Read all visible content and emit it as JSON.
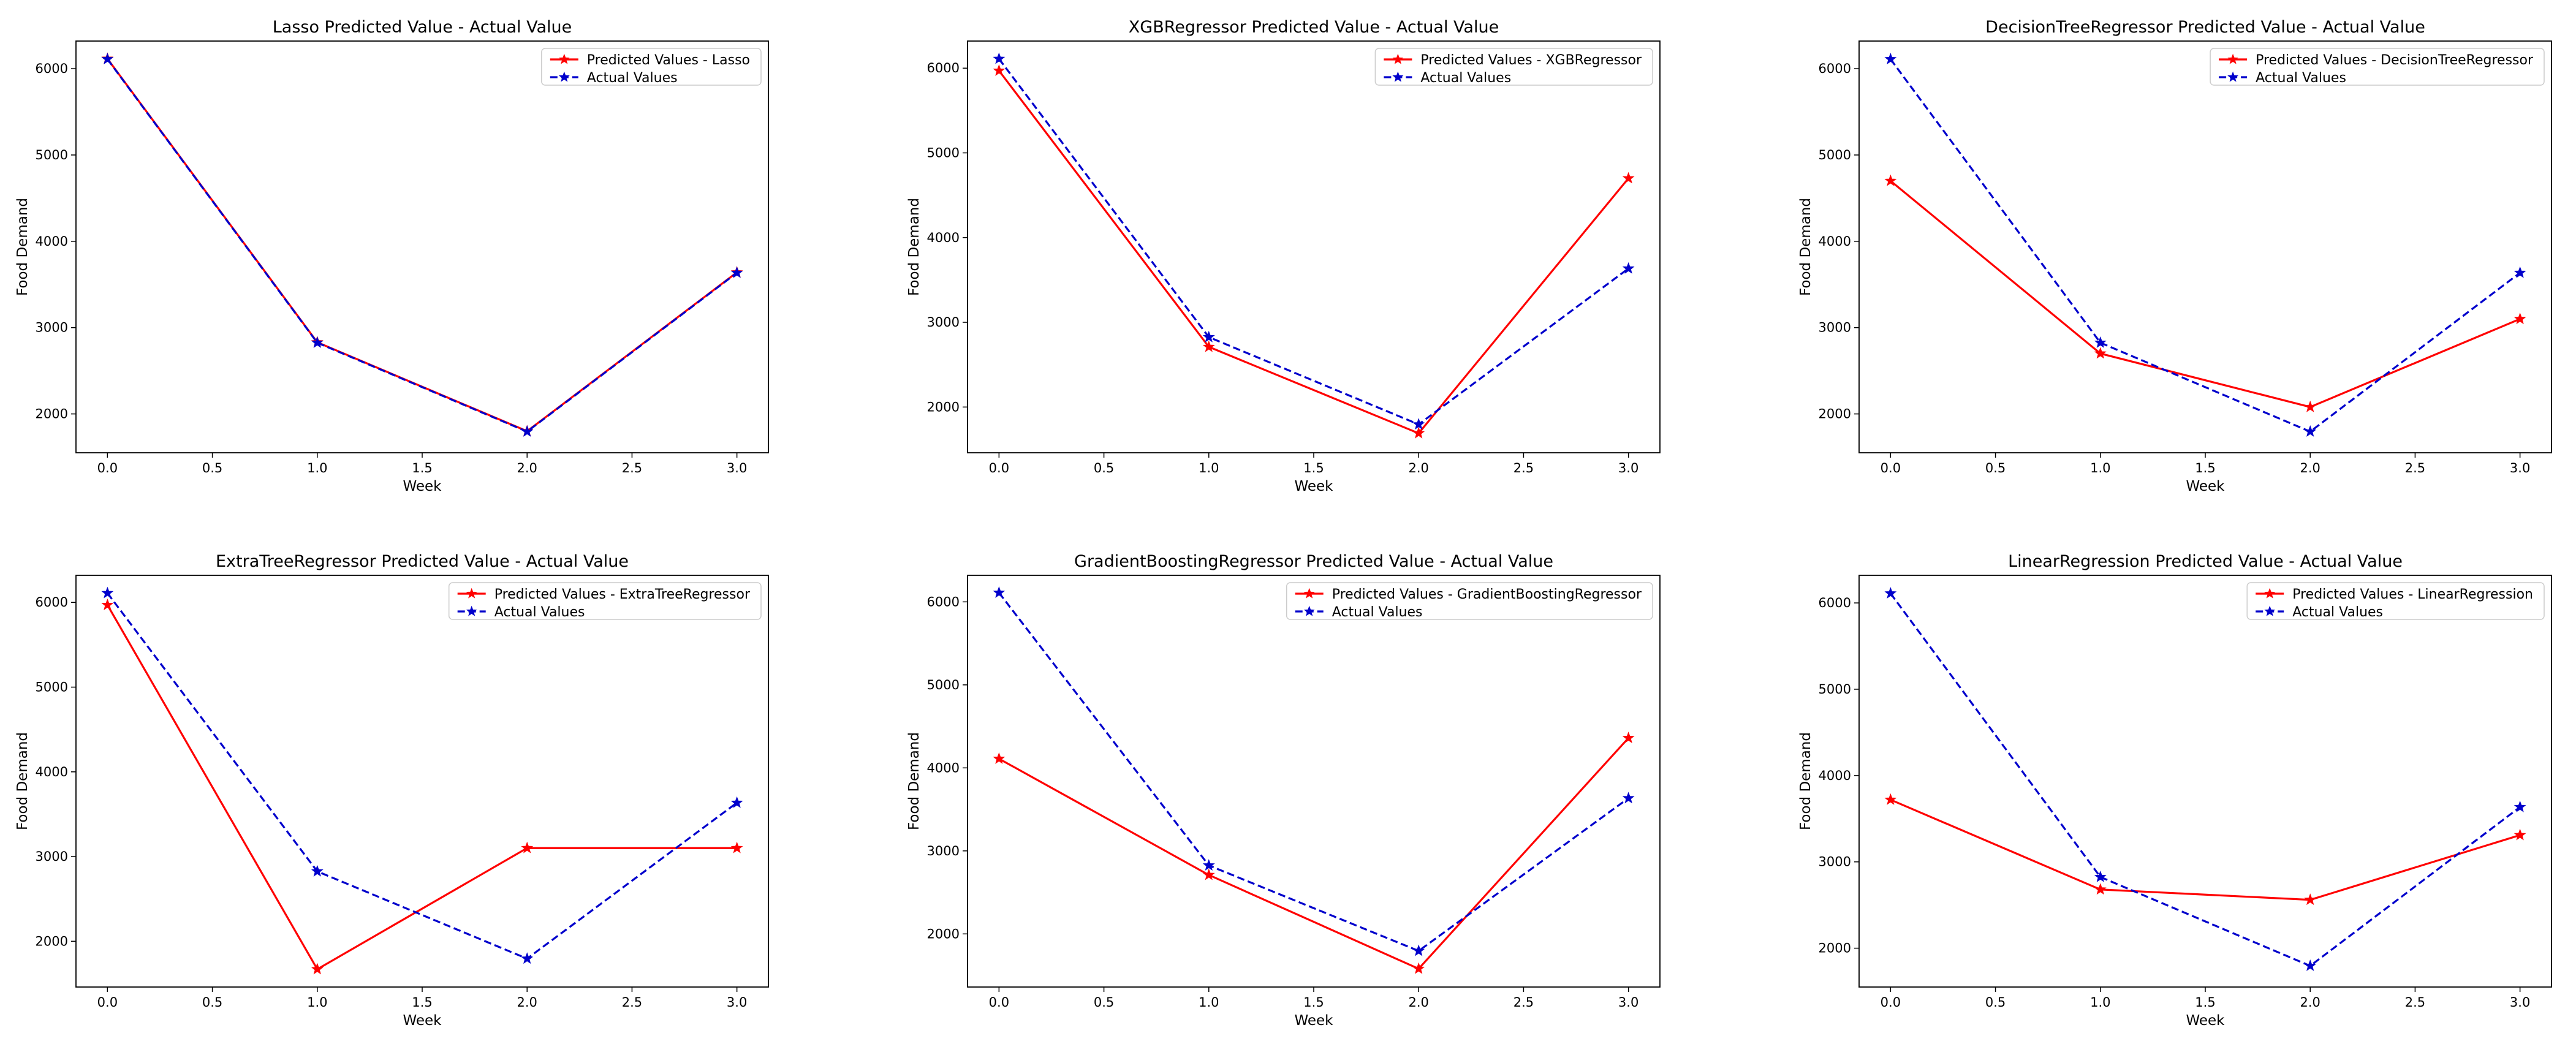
{
  "chart_data": [
    {
      "type": "line",
      "title": "Lasso Predicted Value - Actual Value",
      "xlabel": "Week",
      "ylabel": "Food Demand",
      "x": [
        0,
        1,
        2,
        3
      ],
      "xlim": [
        -0.15,
        3.15
      ],
      "ylim": [
        1550,
        6320
      ],
      "xticks": [
        "0.0",
        "0.5",
        "1.0",
        "1.5",
        "2.0",
        "2.5",
        "3.0"
      ],
      "yticks": [
        "2000",
        "3000",
        "4000",
        "5000",
        "6000"
      ],
      "legend_position": "top-right",
      "series": [
        {
          "name": "Predicted Values - Lasso",
          "values": [
            6115,
            2830,
            1800,
            3640
          ],
          "color": "#ff0000",
          "style": "solid",
          "marker": "star"
        },
        {
          "name": "Actual Values",
          "values": [
            6110,
            2825,
            1795,
            3635
          ],
          "color": "#0000cc",
          "style": "dashed",
          "marker": "star"
        }
      ]
    },
    {
      "type": "line",
      "title": "XGBRegressor Predicted Value - Actual Value",
      "xlabel": "Week",
      "ylabel": "Food Demand",
      "x": [
        0,
        1,
        2,
        3
      ],
      "xlim": [
        -0.15,
        3.15
      ],
      "ylim": [
        1460,
        6320
      ],
      "xticks": [
        "0.0",
        "0.5",
        "1.0",
        "1.5",
        "2.0",
        "2.5",
        "3.0"
      ],
      "yticks": [
        "2000",
        "3000",
        "4000",
        "5000",
        "6000"
      ],
      "legend_position": "top-right",
      "series": [
        {
          "name": "Predicted Values - XGBRegressor",
          "values": [
            5970,
            2710,
            1690,
            4700
          ],
          "color": "#ff0000",
          "style": "solid",
          "marker": "star"
        },
        {
          "name": "Actual Values",
          "values": [
            6110,
            2825,
            1795,
            3635
          ],
          "color": "#0000cc",
          "style": "dashed",
          "marker": "star"
        }
      ]
    },
    {
      "type": "line",
      "title": "DecisionTreeRegressor Predicted Value - Actual Value",
      "xlabel": "Week",
      "ylabel": "Food Demand",
      "x": [
        0,
        1,
        2,
        3
      ],
      "xlim": [
        -0.15,
        3.15
      ],
      "ylim": [
        1550,
        6320
      ],
      "xticks": [
        "0.0",
        "0.5",
        "1.0",
        "1.5",
        "2.0",
        "2.5",
        "3.0"
      ],
      "yticks": [
        "2000",
        "3000",
        "4000",
        "5000",
        "6000"
      ],
      "legend_position": "top-right",
      "series": [
        {
          "name": "Predicted Values - DecisionTreeRegressor",
          "values": [
            4700,
            2700,
            2080,
            3100
          ],
          "color": "#ff0000",
          "style": "solid",
          "marker": "star"
        },
        {
          "name": "Actual Values",
          "values": [
            6110,
            2825,
            1795,
            3635
          ],
          "color": "#0000cc",
          "style": "dashed",
          "marker": "star"
        }
      ]
    },
    {
      "type": "line",
      "title": "ExtraTreeRegressor Predicted Value - Actual Value",
      "xlabel": "Week",
      "ylabel": "Food Demand",
      "x": [
        0,
        1,
        2,
        3
      ],
      "xlim": [
        -0.15,
        3.15
      ],
      "ylim": [
        1460,
        6320
      ],
      "xticks": [
        "0.0",
        "0.5",
        "1.0",
        "1.5",
        "2.0",
        "2.5",
        "3.0"
      ],
      "yticks": [
        "2000",
        "3000",
        "4000",
        "5000",
        "6000"
      ],
      "legend_position": "top-right",
      "series": [
        {
          "name": "Predicted Values - ExtraTreeRegressor",
          "values": [
            5970,
            1670,
            3100,
            3100
          ],
          "color": "#ff0000",
          "style": "solid",
          "marker": "star"
        },
        {
          "name": "Actual Values",
          "values": [
            6110,
            2825,
            1795,
            3635
          ],
          "color": "#0000cc",
          "style": "dashed",
          "marker": "star"
        }
      ]
    },
    {
      "type": "line",
      "title": "GradientBoostingRegressor Predicted Value - Actual Value",
      "xlabel": "Week",
      "ylabel": "Food Demand",
      "x": [
        0,
        1,
        2,
        3
      ],
      "xlim": [
        -0.15,
        3.15
      ],
      "ylim": [
        1360,
        6320
      ],
      "xticks": [
        "0.0",
        "0.5",
        "1.0",
        "1.5",
        "2.0",
        "2.5",
        "3.0"
      ],
      "yticks": [
        "2000",
        "3000",
        "4000",
        "5000",
        "6000"
      ],
      "legend_position": "top-right",
      "series": [
        {
          "name": "Predicted Values - GradientBoostingRegressor",
          "values": [
            4110,
            2710,
            1580,
            4360
          ],
          "color": "#ff0000",
          "style": "solid",
          "marker": "star"
        },
        {
          "name": "Actual Values",
          "values": [
            6110,
            2825,
            1795,
            3635
          ],
          "color": "#0000cc",
          "style": "dashed",
          "marker": "star"
        }
      ]
    },
    {
      "type": "line",
      "title": "LinearRegression Predicted Value - Actual Value",
      "xlabel": "Week",
      "ylabel": "Food Demand",
      "x": [
        0,
        1,
        2,
        3
      ],
      "xlim": [
        -0.15,
        3.15
      ],
      "ylim": [
        1550,
        6320
      ],
      "xticks": [
        "0.0",
        "0.5",
        "1.0",
        "1.5",
        "2.0",
        "2.5",
        "3.0"
      ],
      "yticks": [
        "2000",
        "3000",
        "4000",
        "5000",
        "6000"
      ],
      "legend_position": "top-right",
      "series": [
        {
          "name": "Predicted Values - LinearRegression",
          "values": [
            3720,
            2680,
            2560,
            3310
          ],
          "color": "#ff0000",
          "style": "solid",
          "marker": "star"
        },
        {
          "name": "Actual Values",
          "values": [
            6110,
            2825,
            1795,
            3635
          ],
          "color": "#0000cc",
          "style": "dashed",
          "marker": "star"
        }
      ]
    }
  ]
}
